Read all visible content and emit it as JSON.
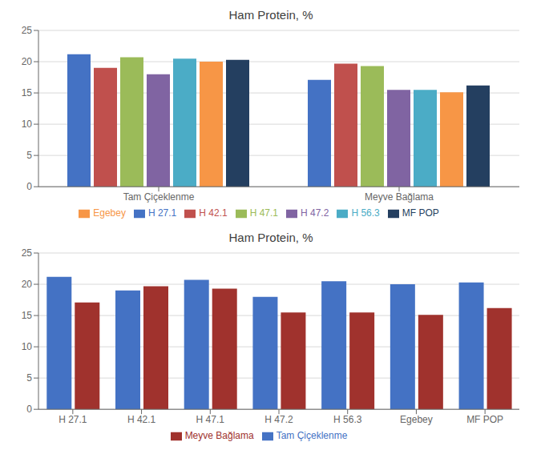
{
  "chart_data": [
    {
      "type": "bar",
      "title": "Ham Protein, %",
      "categories": [
        "Tam Çiçeklenme",
        "Meyve Bağlama"
      ],
      "series": [
        {
          "name": "H 27.1",
          "color": "#4472C4",
          "values": [
            21.2,
            17.1
          ]
        },
        {
          "name": "H 42.1",
          "color": "#C0504D",
          "values": [
            19.0,
            19.7
          ]
        },
        {
          "name": "H 47.1",
          "color": "#9BBB59",
          "values": [
            20.7,
            19.3
          ]
        },
        {
          "name": "H 47.2",
          "color": "#8064A2",
          "values": [
            18.0,
            15.5
          ]
        },
        {
          "name": "H 56.3",
          "color": "#4BACC6",
          "values": [
            20.5,
            15.5
          ]
        },
        {
          "name": "Egebey",
          "color": "#F79646",
          "values": [
            20.0,
            15.1
          ]
        },
        {
          "name": "MF POP",
          "color": "#243F60",
          "values": [
            20.3,
            16.2
          ]
        }
      ],
      "ylim": [
        0,
        25
      ],
      "yticks": [
        0,
        5,
        10,
        15,
        20,
        25
      ],
      "grid": true,
      "legend": "bottom"
    },
    {
      "type": "bar",
      "title": "Ham Protein, %",
      "categories": [
        "H 27.1",
        "H 42.1",
        "H 47.1",
        "H 47.2",
        "H 56.3",
        "Egebey",
        "MF POP"
      ],
      "series": [
        {
          "name": "Tam Çiçeklenme",
          "color": "#4472C4",
          "values": [
            21.2,
            19.0,
            20.7,
            18.0,
            20.5,
            20.0,
            20.3
          ]
        },
        {
          "name": "Meyve Bağlama",
          "color": "#A0322D",
          "values": [
            17.1,
            19.7,
            19.3,
            15.5,
            15.5,
            15.1,
            16.2
          ]
        }
      ],
      "ylim": [
        0,
        25
      ],
      "yticks": [
        0,
        5,
        10,
        15,
        20,
        25
      ],
      "grid": true,
      "legend": "bottom"
    }
  ]
}
